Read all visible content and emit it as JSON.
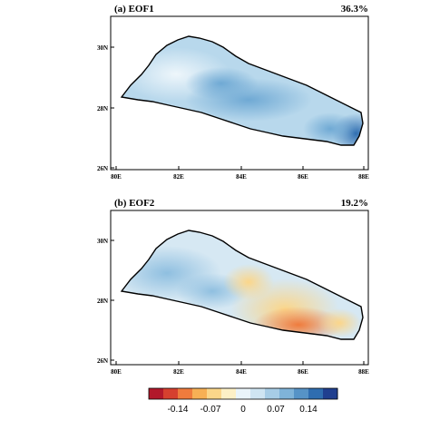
{
  "panels": [
    {
      "title": "(a) EOF1",
      "variance": "36.3%",
      "lat_labels": [
        "30N",
        "28N",
        "26N"
      ],
      "lon_labels": [
        "80E",
        "82E",
        "84E",
        "86E",
        "88E"
      ]
    },
    {
      "title": "(b) EOF2",
      "variance": "19.2%",
      "lat_labels": [
        "30N",
        "28N",
        "26N"
      ],
      "lon_labels": [
        "80E",
        "82E",
        "84E",
        "86E",
        "88E"
      ]
    }
  ],
  "colorbar": {
    "tick_labels": [
      "-0.14",
      "-0.07",
      "0",
      "0.07",
      "0.14"
    ],
    "colors": [
      "#b2182b",
      "#d6402f",
      "#ef7b3d",
      "#f7b055",
      "#fbd68a",
      "#fdf0c6",
      "#eaf4fa",
      "#cfe5f2",
      "#a7cde6",
      "#7fb3d9",
      "#5693c7",
      "#2f6db0",
      "#203f8f"
    ]
  }
}
